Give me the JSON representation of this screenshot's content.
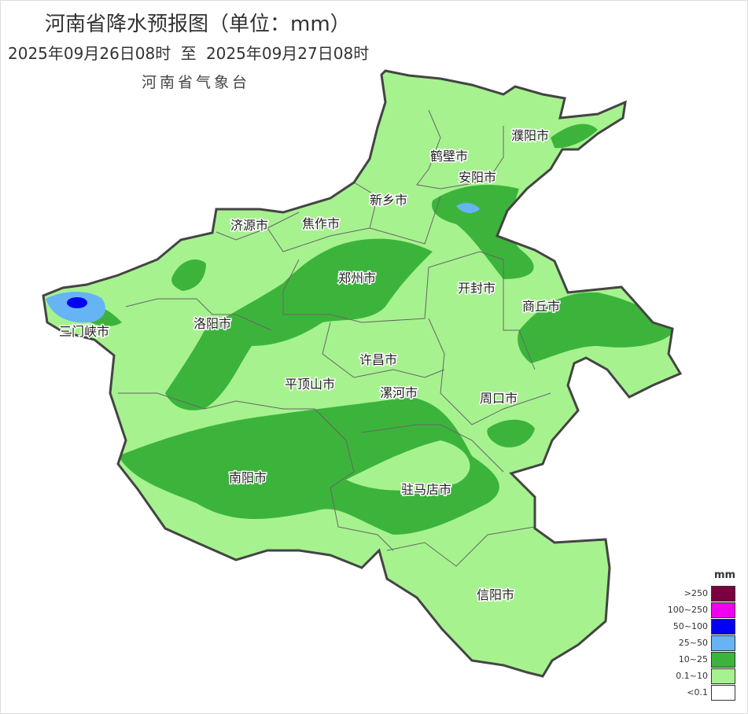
{
  "header": {
    "title": "河南省降水预报图（单位：mm）",
    "period": "2025年09月26日08时  至  2025年09月27日08时",
    "agency": "河南省气象台"
  },
  "cities": [
    {
      "name": "濮阳市"
    },
    {
      "name": "鹤壁市"
    },
    {
      "name": "安阳市"
    },
    {
      "name": "新乡市"
    },
    {
      "name": "济源市"
    },
    {
      "name": "焦作市"
    },
    {
      "name": "郑州市"
    },
    {
      "name": "开封市"
    },
    {
      "name": "商丘市"
    },
    {
      "name": "三门峡市"
    },
    {
      "name": "洛阳市"
    },
    {
      "name": "许昌市"
    },
    {
      "name": "平顶山市"
    },
    {
      "name": "漯河市"
    },
    {
      "name": "周口市"
    },
    {
      "name": "南阳市"
    },
    {
      "name": "驻马店市"
    },
    {
      "name": "信阳市"
    }
  ],
  "legend": {
    "unit": "mm",
    "items": [
      {
        "label": ">250",
        "color": "#7b0040"
      },
      {
        "label": "100~250",
        "color": "#f000f0"
      },
      {
        "label": "50~100",
        "color": "#0000f5"
      },
      {
        "label": "25~50",
        "color": "#66b4f5"
      },
      {
        "label": "10~25",
        "color": "#3cb43c"
      },
      {
        "label": "0.1~10",
        "color": "#a6f28f"
      },
      {
        "label": "<0.1",
        "color": "#ffffff"
      }
    ]
  }
}
